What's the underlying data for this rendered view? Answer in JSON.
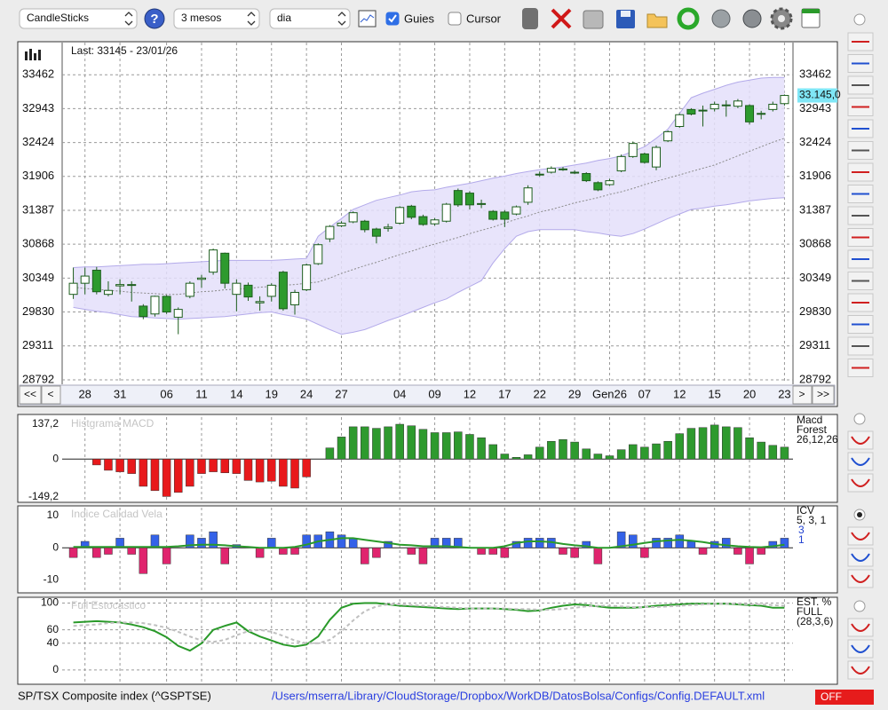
{
  "toolbar": {
    "chart_type": "CandleSticks",
    "help": "?",
    "period": "3 mesos",
    "interval": "dia",
    "guides_label": "Guies",
    "guides_checked": true,
    "cursor_label": "Cursor",
    "cursor_checked": false
  },
  "navigation": {
    "first": "<<",
    "previous": "<",
    "next": ">",
    "last": ">>"
  },
  "chart_data": [
    {
      "type": "candlestick",
      "last_label": "Last: 33145 - 23/01/26",
      "last_price_tag": {
        "value": 33145,
        "label": "33.145,0"
      },
      "tag_color": "#7fe6f6",
      "categories": [
        null,
        "28",
        null,
        null,
        "31",
        null,
        null,
        null,
        "06",
        null,
        null,
        "11",
        null,
        null,
        "14",
        null,
        null,
        "19",
        null,
        null,
        "24",
        null,
        null,
        "27",
        null,
        null,
        null,
        null,
        "04",
        null,
        null,
        "09",
        null,
        null,
        "12",
        null,
        null,
        "17",
        null,
        null,
        "22",
        null,
        null,
        "29",
        null,
        null,
        "Gen26",
        null,
        null,
        "07",
        null,
        null,
        "12",
        null,
        null,
        "15",
        null,
        null,
        "20",
        null,
        null,
        "23"
      ],
      "open": [
        30100,
        30270,
        30470,
        30100,
        30230,
        30250,
        29920,
        29800,
        30070,
        29750,
        30070,
        30330,
        30440,
        30730,
        30100,
        30240,
        29970,
        30070,
        30440,
        29940,
        30170,
        30570,
        30950,
        31150,
        31210,
        31220,
        31100,
        31110,
        31190,
        31450,
        31290,
        31180,
        31220,
        31690,
        31650,
        31480,
        31370,
        31360,
        31330,
        31510,
        31930,
        31970,
        32010,
        31960,
        31950,
        31810,
        31780,
        31990,
        32210,
        32250,
        32050,
        32450,
        32670,
        32930,
        32910,
        32940,
        32990,
        32980,
        32990,
        32860,
        32930,
        33020
      ],
      "high": [
        30510,
        30510,
        30520,
        30300,
        30330,
        30300,
        29950,
        30080,
        30090,
        29900,
        30300,
        30400,
        30800,
        30740,
        30330,
        30280,
        30070,
        30270,
        30460,
        30170,
        30570,
        30880,
        31160,
        31220,
        31370,
        31240,
        31120,
        31180,
        31450,
        31470,
        31320,
        31270,
        31500,
        31720,
        31680,
        31550,
        31390,
        31390,
        31460,
        31770,
        31980,
        32060,
        32050,
        32000,
        31970,
        31830,
        31870,
        32240,
        32440,
        32270,
        32380,
        32610,
        32870,
        32950,
        32990,
        33050,
        33070,
        33090,
        33010,
        32910,
        33050,
        33160
      ],
      "low": [
        30030,
        30100,
        30100,
        30070,
        30100,
        29990,
        29720,
        29760,
        29800,
        29490,
        30040,
        30200,
        30400,
        30190,
        29840,
        30000,
        29850,
        29990,
        29850,
        29790,
        30150,
        30550,
        30900,
        31130,
        31190,
        31050,
        30880,
        31060,
        31170,
        31250,
        31150,
        31150,
        31200,
        31440,
        31400,
        31420,
        31230,
        31130,
        31310,
        31470,
        31900,
        31950,
        31990,
        31940,
        31820,
        31680,
        31760,
        31970,
        32190,
        32100,
        32000,
        32430,
        32650,
        32840,
        32670,
        32900,
        32820,
        32950,
        32700,
        32780,
        32900,
        32990
      ],
      "close": [
        30270,
        30380,
        30140,
        30160,
        30250,
        30240,
        29760,
        30070,
        29830,
        29870,
        30270,
        30350,
        30780,
        30270,
        30270,
        30060,
        29990,
        30240,
        29880,
        30130,
        30550,
        30860,
        31140,
        31190,
        31350,
        31090,
        30990,
        31130,
        31430,
        31280,
        31170,
        31240,
        31480,
        31470,
        31470,
        31490,
        31250,
        31250,
        31440,
        31730,
        31940,
        32030,
        32020,
        31970,
        31840,
        31700,
        31840,
        32210,
        32410,
        32120,
        32350,
        32590,
        32850,
        32860,
        32920,
        33010,
        33000,
        33060,
        32740,
        32870,
        33010,
        33145
      ],
      "upper_band": [
        30510,
        30520,
        30520,
        30530,
        30540,
        30550,
        30560,
        30560,
        30570,
        30580,
        30590,
        30600,
        30610,
        30620,
        30620,
        30620,
        30620,
        30620,
        30630,
        30640,
        30650,
        30990,
        31130,
        31260,
        31400,
        31470,
        31540,
        31580,
        31620,
        31670,
        31690,
        31700,
        31740,
        31770,
        31800,
        31840,
        31880,
        31910,
        31950,
        31980,
        32010,
        32030,
        32050,
        32080,
        32110,
        32150,
        32180,
        32220,
        32290,
        32360,
        32490,
        32630,
        32870,
        33110,
        33180,
        33240,
        33300,
        33350,
        33380,
        33410,
        33420,
        33420
      ],
      "lower_band": [
        29900,
        29870,
        29840,
        29820,
        29790,
        29760,
        29750,
        29740,
        29730,
        29720,
        29730,
        29740,
        29750,
        29760,
        29780,
        29800,
        29820,
        29830,
        29790,
        29760,
        29720,
        29640,
        29560,
        29490,
        29520,
        29560,
        29630,
        29700,
        29760,
        29830,
        29900,
        29970,
        30030,
        30130,
        30220,
        30310,
        30580,
        30800,
        30990,
        31060,
        31090,
        31090,
        31090,
        31090,
        31060,
        31040,
        31010,
        30990,
        31030,
        31100,
        31180,
        31260,
        31330,
        31400,
        31420,
        31450,
        31470,
        31500,
        31530,
        31550,
        31570,
        31580
      ],
      "moving_average": [
        30210,
        30190,
        30180,
        30160,
        30150,
        30130,
        30120,
        30110,
        30100,
        30100,
        30120,
        30140,
        30150,
        30170,
        30180,
        30190,
        30210,
        30220,
        30240,
        30250,
        30270,
        30290,
        30350,
        30420,
        30480,
        30540,
        30590,
        30650,
        30710,
        30760,
        30820,
        30870,
        30920,
        30970,
        31030,
        31080,
        31130,
        31190,
        31250,
        31300,
        31360,
        31400,
        31450,
        31500,
        31540,
        31580,
        31630,
        31670,
        31720,
        31780,
        31830,
        31880,
        31930,
        31980,
        32030,
        32080,
        32150,
        32220,
        32290,
        32360,
        32430,
        32490
      ],
      "up_color": "#ffffff",
      "down_color": "#2e9a2e",
      "outline_color": "#1d5e1d",
      "band_color": "#e4dffa",
      "band_line_color": "#b3aaea",
      "ma_color": "#8a8a8a",
      "ylim": [
        28737,
        33954
      ],
      "yticks": [
        33462,
        32943,
        32424,
        31906,
        31387,
        30868,
        30349,
        29830,
        29311,
        28792
      ],
      "grid": true
    },
    {
      "type": "bar",
      "title": "Histgrama MACD",
      "side_labels": [
        "Macd",
        "Forest",
        "26,12,26"
      ],
      "values": [
        null,
        null,
        -23,
        -44,
        -50,
        -57,
        -107,
        -124,
        -147,
        -131,
        -107,
        -57,
        -50,
        -54,
        -57,
        -84,
        -90,
        -87,
        -107,
        -114,
        -70,
        null,
        44,
        87,
        127,
        127,
        121,
        127,
        137,
        131,
        117,
        104,
        104,
        107,
        97,
        84,
        57,
        20,
        7,
        17,
        47,
        70,
        77,
        67,
        40,
        20,
        13,
        37,
        57,
        47,
        60,
        70,
        100,
        121,
        124,
        134,
        127,
        124,
        84,
        67,
        54,
        47
      ],
      "positive_color": "#2e9a2e",
      "negative_color": "#e8191b",
      "ylim": [
        -163,
        165
      ],
      "yticks": [
        {
          "value": 137.2,
          "label": "137,2"
        },
        0,
        {
          "value": -149.2,
          "label": "-149,2"
        }
      ],
      "grid": false
    },
    {
      "type": "bar",
      "title": "Indice Calidad Vela",
      "side_labels": [
        "ICV",
        "5, 3, 1"
      ],
      "signal_labels": [
        "3",
        "1"
      ],
      "signal_label_color": "#2040d0",
      "values": [
        -3,
        2,
        -3,
        -2,
        3,
        -2,
        -8,
        4,
        -5,
        null,
        4,
        3,
        5,
        -5,
        1,
        null,
        -3,
        3,
        -2,
        -2,
        4,
        4,
        5,
        4,
        3,
        -5,
        -3,
        2,
        null,
        -2,
        -5,
        3,
        3,
        3,
        null,
        -2,
        -2,
        -3,
        2,
        3,
        3,
        3,
        -2,
        -3,
        2,
        -5,
        null,
        5,
        4,
        -3,
        3,
        3,
        4,
        2,
        -2,
        2,
        3,
        -2,
        -5,
        -2,
        2,
        3
      ],
      "line": {
        "color": "#2a9a2a",
        "values": [
          0.3,
          0.3,
          0.3,
          0.3,
          0.3,
          0.3,
          0.3,
          0.3,
          0.3,
          0.5,
          0.8,
          1,
          1,
          0.8,
          0.5,
          0.3,
          0,
          0,
          0,
          0.3,
          1,
          2,
          2.5,
          3,
          3,
          2.5,
          2,
          1.5,
          1,
          0.8,
          0.5,
          0.5,
          0.5,
          0.3,
          0,
          0,
          0,
          0.5,
          1.5,
          2,
          2,
          1.8,
          1.2,
          0.8,
          0.5,
          0,
          0,
          0.5,
          1,
          1.5,
          2,
          2.3,
          2.5,
          2.2,
          1.8,
          1.2,
          0.8,
          0.5,
          0.3,
          0.2,
          0.5,
          1
        ]
      },
      "positive_color": "#3462e8",
      "negative_color": "#e0246e",
      "ylim": [
        -14,
        12.5
      ],
      "yticks": [
        10,
        0,
        -10
      ],
      "grid": false
    },
    {
      "type": "line",
      "title": "Full Estocastico",
      "side_labels": [
        "EST. %",
        "FULL",
        "(28,3,6)"
      ],
      "series": [
        {
          "color": "#2a9a2a",
          "values": [
            71,
            72,
            73,
            72,
            71,
            68,
            64,
            58,
            49,
            36,
            29,
            40,
            60,
            66,
            71,
            58,
            50,
            44,
            38,
            35,
            38,
            50,
            75,
            93,
            99,
            100,
            100,
            98,
            96,
            95,
            94,
            93,
            92,
            91,
            92,
            92,
            92,
            91,
            90,
            88,
            89,
            93,
            96,
            98,
            97,
            95,
            93,
            93,
            93,
            94,
            96,
            97,
            98,
            99,
            99,
            99,
            99,
            98,
            97,
            96,
            93,
            93
          ]
        },
        {
          "color": "#c0c0c0",
          "dashed": true,
          "values": [
            66,
            67,
            68,
            70,
            71,
            71,
            70,
            67,
            63,
            57,
            50,
            44,
            42,
            45,
            52,
            58,
            60,
            57,
            51,
            44,
            40,
            40,
            45,
            58,
            74,
            88,
            95,
            98,
            98,
            97,
            96,
            95,
            94,
            93,
            92,
            92,
            92,
            92,
            91,
            91,
            90,
            90,
            91,
            93,
            95,
            96,
            96,
            95,
            94,
            94,
            94,
            95,
            96,
            97,
            98,
            99,
            99,
            99,
            98,
            98,
            97,
            96
          ]
        }
      ],
      "ylim": [
        -20,
        106
      ],
      "yticks": [
        100,
        60,
        40,
        0
      ],
      "grid": true
    }
  ],
  "footer": {
    "index_name": "SP/TSX Composite index (^GSPTSE)",
    "config_path": "/Users/mserra/Library/CloudStorage/Dropbox/WorkDB/DatosBolsa/Configs/Config.DEFAULT.xml",
    "status": "OFF"
  }
}
